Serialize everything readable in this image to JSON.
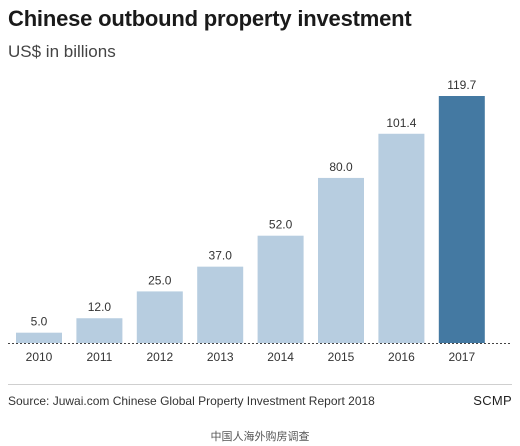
{
  "chart_data": {
    "type": "bar",
    "title": "Chinese outbound property investment",
    "subtitle": "US$ in billions",
    "categories": [
      "2010",
      "2011",
      "2012",
      "2013",
      "2014",
      "2015",
      "2016",
      "2017"
    ],
    "values": [
      5.0,
      12.0,
      25.0,
      37.0,
      52.0,
      80.0,
      101.4,
      119.7
    ],
    "value_labels": [
      "5.0",
      "12.0",
      "25.0",
      "37.0",
      "52.0",
      "80.0",
      "101.4",
      "119.7"
    ],
    "xlabel": "",
    "ylabel": "",
    "ylim": [
      0,
      120
    ],
    "grid": false,
    "colors": {
      "bar": "#b7cde0",
      "highlight_bar": "#4479a2",
      "highlight_category": "2017",
      "baseline": "#444444"
    }
  },
  "footer": {
    "source": "Source: Juwai.com Chinese Global Property Investment Report 2018",
    "brand": "SCMP"
  },
  "caption": "中国人海外购房调查"
}
